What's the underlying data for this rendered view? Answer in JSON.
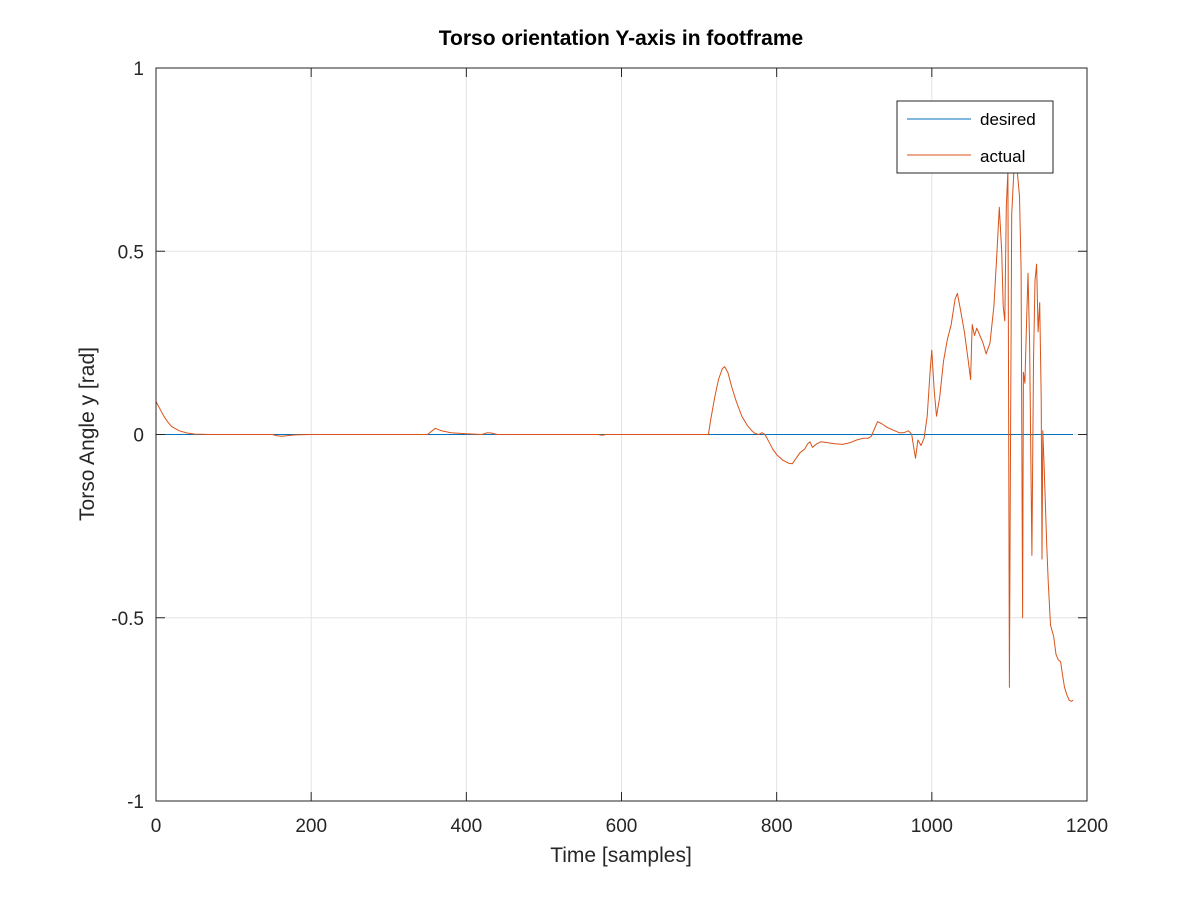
{
  "chart_data": {
    "type": "line",
    "title": "Torso orientation Y-axis in footframe",
    "xlabel": "Time [samples]",
    "ylabel": "Torso Angle y [rad]",
    "xlim": [
      0,
      1200
    ],
    "ylim": [
      -1,
      1
    ],
    "xticks": [
      0,
      200,
      400,
      600,
      800,
      1000,
      1200
    ],
    "yticks": [
      -1,
      -0.5,
      0,
      0.5,
      1
    ],
    "xtick_labels": [
      "0",
      "200",
      "400",
      "600",
      "800",
      "1000",
      "1200"
    ],
    "ytick_labels": [
      "-1",
      "-0.5",
      "0",
      "0.5",
      "1"
    ],
    "grid": true,
    "legend_position": "top-right",
    "series": [
      {
        "name": "desired",
        "color": "#0072BD",
        "points": [
          [
            0,
            0
          ],
          [
            1182,
            0
          ]
        ]
      },
      {
        "name": "actual",
        "color": "#D95319",
        "points": [
          [
            0,
            0.09
          ],
          [
            5,
            0.07
          ],
          [
            10,
            0.05
          ],
          [
            15,
            0.035
          ],
          [
            20,
            0.022
          ],
          [
            30,
            0.01
          ],
          [
            40,
            0.004
          ],
          [
            50,
            0.001
          ],
          [
            70,
            0
          ],
          [
            100,
            0
          ],
          [
            150,
            0
          ],
          [
            155,
            -0.003
          ],
          [
            162,
            -0.005
          ],
          [
            170,
            -0.003
          ],
          [
            180,
            -0.001
          ],
          [
            200,
            0
          ],
          [
            220,
            0
          ],
          [
            260,
            0
          ],
          [
            300,
            0
          ],
          [
            350,
            0
          ],
          [
            356,
            0.01
          ],
          [
            360,
            0.017
          ],
          [
            368,
            0.01
          ],
          [
            380,
            0.005
          ],
          [
            400,
            0.002
          ],
          [
            420,
            0
          ],
          [
            427,
            0.005
          ],
          [
            432,
            0.004
          ],
          [
            440,
            0
          ],
          [
            500,
            0
          ],
          [
            570,
            0
          ],
          [
            575,
            -0.002
          ],
          [
            580,
            0
          ],
          [
            650,
            0
          ],
          [
            700,
            0
          ],
          [
            712,
            0
          ],
          [
            715,
            0.04
          ],
          [
            720,
            0.1
          ],
          [
            725,
            0.15
          ],
          [
            730,
            0.18
          ],
          [
            733,
            0.185
          ],
          [
            737,
            0.17
          ],
          [
            742,
            0.13
          ],
          [
            748,
            0.09
          ],
          [
            755,
            0.05
          ],
          [
            762,
            0.025
          ],
          [
            768,
            0.01
          ],
          [
            772,
            0.003
          ],
          [
            777,
            0
          ],
          [
            781,
            0.005
          ],
          [
            785,
            0
          ],
          [
            790,
            -0.02
          ],
          [
            795,
            -0.04
          ],
          [
            800,
            -0.055
          ],
          [
            808,
            -0.07
          ],
          [
            815,
            -0.078
          ],
          [
            820,
            -0.08
          ],
          [
            825,
            -0.065
          ],
          [
            830,
            -0.05
          ],
          [
            836,
            -0.04
          ],
          [
            840,
            -0.025
          ],
          [
            843,
            -0.02
          ],
          [
            846,
            -0.035
          ],
          [
            852,
            -0.025
          ],
          [
            857,
            -0.02
          ],
          [
            865,
            -0.022
          ],
          [
            875,
            -0.025
          ],
          [
            885,
            -0.027
          ],
          [
            895,
            -0.022
          ],
          [
            903,
            -0.015
          ],
          [
            912,
            -0.01
          ],
          [
            918,
            -0.01
          ],
          [
            922,
            -0.005
          ],
          [
            926,
            0.015
          ],
          [
            930,
            0.035
          ],
          [
            935,
            0.03
          ],
          [
            942,
            0.02
          ],
          [
            950,
            0.012
          ],
          [
            958,
            0.005
          ],
          [
            964,
            0.005
          ],
          [
            970,
            0.01
          ],
          [
            974,
            0
          ],
          [
            977,
            -0.04
          ],
          [
            979,
            -0.065
          ],
          [
            982,
            -0.015
          ],
          [
            986,
            -0.03
          ],
          [
            990,
            -0.01
          ],
          [
            994,
            0.05
          ],
          [
            998,
            0.18
          ],
          [
            1000,
            0.23
          ],
          [
            1003,
            0.12
          ],
          [
            1006,
            0.05
          ],
          [
            1010,
            0.1
          ],
          [
            1015,
            0.2
          ],
          [
            1020,
            0.26
          ],
          [
            1025,
            0.3
          ],
          [
            1030,
            0.37
          ],
          [
            1033,
            0.385
          ],
          [
            1037,
            0.34
          ],
          [
            1042,
            0.28
          ],
          [
            1047,
            0.2
          ],
          [
            1050,
            0.15
          ],
          [
            1052,
            0.3
          ],
          [
            1055,
            0.27
          ],
          [
            1058,
            0.29
          ],
          [
            1062,
            0.27
          ],
          [
            1066,
            0.25
          ],
          [
            1070,
            0.22
          ],
          [
            1075,
            0.25
          ],
          [
            1080,
            0.35
          ],
          [
            1084,
            0.5
          ],
          [
            1087,
            0.62
          ],
          [
            1090,
            0.5
          ],
          [
            1092,
            0.35
          ],
          [
            1094,
            0.31
          ],
          [
            1096,
            0.62
          ],
          [
            1098,
            0.72
          ],
          [
            1099,
            0.1
          ],
          [
            1100,
            -0.69
          ],
          [
            1101,
            -0.2
          ],
          [
            1103,
            0.6
          ],
          [
            1106,
            0.73
          ],
          [
            1110,
            0.72
          ],
          [
            1113,
            0.65
          ],
          [
            1115,
            0.45
          ],
          [
            1117,
            -0.5
          ],
          [
            1118,
            0.17
          ],
          [
            1120,
            0.14
          ],
          [
            1122,
            0.3
          ],
          [
            1124,
            0.44
          ],
          [
            1126,
            0.25
          ],
          [
            1129,
            -0.33
          ],
          [
            1131,
            0.2
          ],
          [
            1133,
            0.42
          ],
          [
            1135,
            0.465
          ],
          [
            1137,
            0.28
          ],
          [
            1139,
            0.36
          ],
          [
            1141,
            0.1
          ],
          [
            1142,
            -0.34
          ],
          [
            1143,
            0.01
          ],
          [
            1145,
            -0.1
          ],
          [
            1148,
            -0.3
          ],
          [
            1150,
            -0.4
          ],
          [
            1153,
            -0.52
          ],
          [
            1157,
            -0.55
          ],
          [
            1160,
            -0.6
          ],
          [
            1163,
            -0.615
          ],
          [
            1166,
            -0.62
          ],
          [
            1168,
            -0.65
          ],
          [
            1171,
            -0.69
          ],
          [
            1174,
            -0.71
          ],
          [
            1177,
            -0.725
          ],
          [
            1180,
            -0.728
          ],
          [
            1182,
            -0.725
          ]
        ]
      }
    ]
  }
}
